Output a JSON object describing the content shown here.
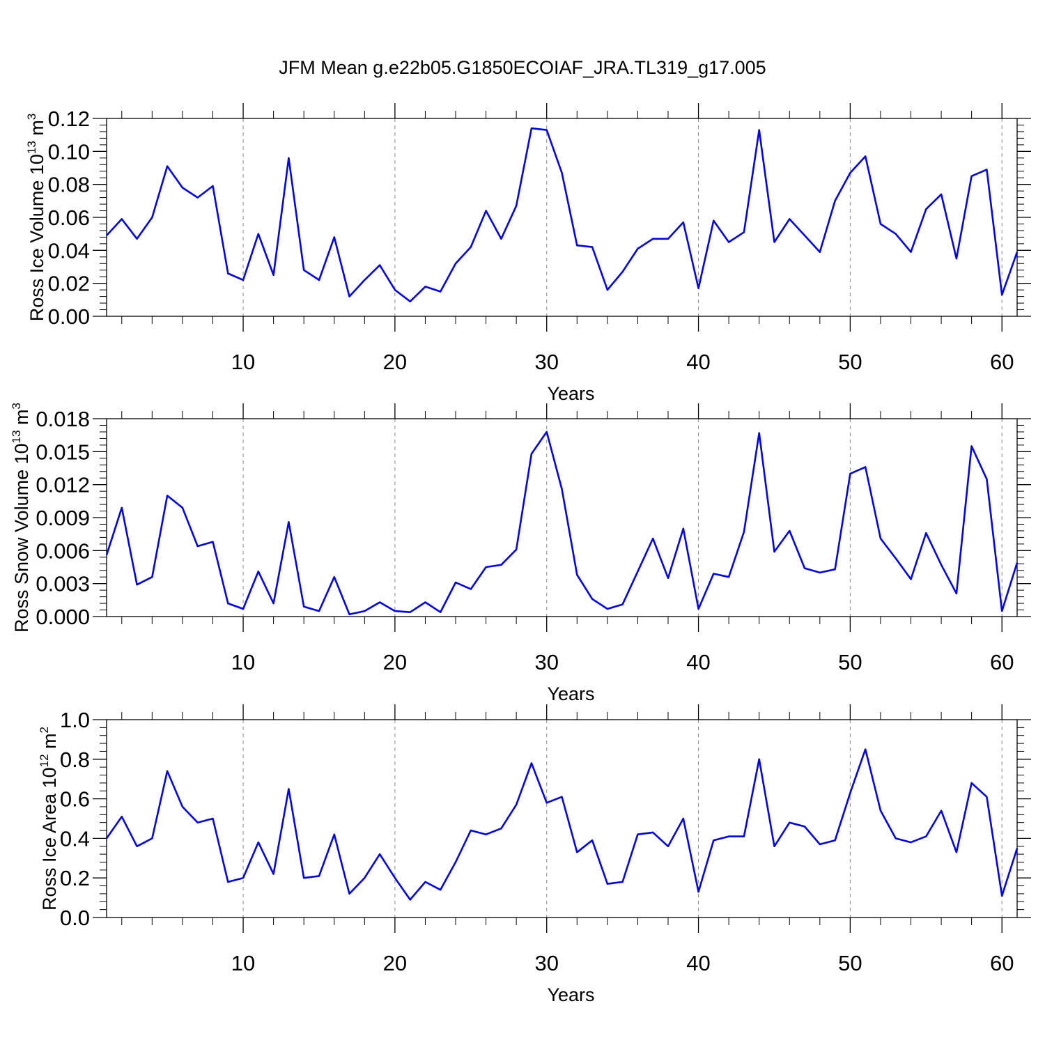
{
  "title": "JFM Mean g.e22b05.G1850ECOIAF_JRA.TL319_g17.005",
  "colors": {
    "line": "#0000ff",
    "axis": "#000000",
    "grid": "#888888"
  },
  "chart_data": [
    {
      "type": "line",
      "ylabel": {
        "main": "Ross Ice Volume 10",
        "sup": "13",
        "unit": " m",
        "unit_sup": "3"
      },
      "xlabel": "Years",
      "xlim": [
        1,
        61
      ],
      "ylim": [
        0,
        0.12
      ],
      "yticks": [
        0.0,
        0.02,
        0.04,
        0.06,
        0.08,
        0.1,
        0.12
      ],
      "ytick_labels": [
        "0.00",
        "0.02",
        "0.04",
        "0.06",
        "0.08",
        "0.10",
        "0.12"
      ],
      "xticks": [
        10,
        20,
        30,
        40,
        50,
        60
      ],
      "xtick_labels": [
        "10",
        "20",
        "30",
        "40",
        "50",
        "60"
      ],
      "grid": "vertical dashed at major x ticks",
      "series": [
        {
          "x": [
            1,
            2,
            3,
            4,
            5,
            6,
            7,
            8,
            9,
            10,
            11,
            12,
            13,
            14,
            15,
            16,
            17,
            18,
            19,
            20,
            21,
            22,
            23,
            24,
            25,
            26,
            27,
            28,
            29,
            30,
            31,
            32,
            33,
            34,
            35,
            36,
            37,
            38,
            39,
            40,
            41,
            42,
            43,
            44,
            45,
            46,
            47,
            48,
            49,
            50,
            51,
            52,
            53,
            54,
            55,
            56,
            57,
            58,
            59,
            60,
            61
          ],
          "values": [
            0.049,
            0.059,
            0.047,
            0.06,
            0.091,
            0.078,
            0.072,
            0.079,
            0.026,
            0.022,
            0.05,
            0.025,
            0.096,
            0.028,
            0.022,
            0.048,
            0.012,
            0.022,
            0.031,
            0.016,
            0.009,
            0.018,
            0.015,
            0.032,
            0.042,
            0.064,
            0.047,
            0.067,
            0.114,
            0.113,
            0.087,
            0.043,
            0.042,
            0.016,
            0.027,
            0.041,
            0.047,
            0.047,
            0.057,
            0.017,
            0.058,
            0.045,
            0.051,
            0.113,
            0.045,
            0.059,
            0.049,
            0.039,
            0.07,
            0.087,
            0.097,
            0.056,
            0.05,
            0.039,
            0.065,
            0.074,
            0.035,
            0.085,
            0.089,
            0.013,
            0.039
          ]
        }
      ]
    },
    {
      "type": "line",
      "ylabel": {
        "main": "Ross Snow Volume 10",
        "sup": "13",
        "unit": " m",
        "unit_sup": "3"
      },
      "xlabel": "Years",
      "xlim": [
        1,
        61
      ],
      "ylim": [
        0,
        0.018
      ],
      "yticks": [
        0.0,
        0.003,
        0.006,
        0.009,
        0.012,
        0.015,
        0.018
      ],
      "ytick_labels": [
        "0.000",
        "0.003",
        "0.006",
        "0.009",
        "0.012",
        "0.015",
        "0.018"
      ],
      "xticks": [
        10,
        20,
        30,
        40,
        50,
        60
      ],
      "xtick_labels": [
        "10",
        "20",
        "30",
        "40",
        "50",
        "60"
      ],
      "grid": "vertical dashed at major x ticks",
      "series": [
        {
          "x": [
            1,
            2,
            3,
            4,
            5,
            6,
            7,
            8,
            9,
            10,
            11,
            12,
            13,
            14,
            15,
            16,
            17,
            18,
            19,
            20,
            21,
            22,
            23,
            24,
            25,
            26,
            27,
            28,
            29,
            30,
            31,
            32,
            33,
            34,
            35,
            36,
            37,
            38,
            39,
            40,
            41,
            42,
            43,
            44,
            45,
            46,
            47,
            48,
            49,
            50,
            51,
            52,
            53,
            54,
            55,
            56,
            57,
            58,
            59,
            60,
            61
          ],
          "values": [
            0.0056,
            0.0099,
            0.0029,
            0.0036,
            0.011,
            0.0099,
            0.0064,
            0.0068,
            0.0012,
            0.0007,
            0.0041,
            0.0012,
            0.0086,
            0.0009,
            0.0005,
            0.0036,
            0.0002,
            0.0005,
            0.0013,
            0.0005,
            0.0004,
            0.0013,
            0.0004,
            0.0031,
            0.0025,
            0.0045,
            0.0047,
            0.0061,
            0.0148,
            0.0168,
            0.0116,
            0.0038,
            0.0016,
            0.0007,
            0.0011,
            0.0041,
            0.0071,
            0.0035,
            0.008,
            0.0007,
            0.0039,
            0.0036,
            0.0077,
            0.0167,
            0.0059,
            0.0078,
            0.0044,
            0.004,
            0.0043,
            0.013,
            0.0136,
            0.0071,
            0.0053,
            0.0034,
            0.0076,
            0.0047,
            0.0021,
            0.0155,
            0.0125,
            0.0005,
            0.0049
          ]
        }
      ]
    },
    {
      "type": "line",
      "ylabel": {
        "main": "Ross Ice Area 10",
        "sup": "12",
        "unit": " m",
        "unit_sup": "2"
      },
      "xlabel": "Years",
      "xlim": [
        1,
        61
      ],
      "ylim": [
        0,
        1.0
      ],
      "yticks": [
        0.0,
        0.2,
        0.4,
        0.6,
        0.8,
        1.0
      ],
      "ytick_labels": [
        "0.0",
        "0.2",
        "0.4",
        "0.6",
        "0.8",
        "1.0"
      ],
      "xticks": [
        10,
        20,
        30,
        40,
        50,
        60
      ],
      "xtick_labels": [
        "10",
        "20",
        "30",
        "40",
        "50",
        "60"
      ],
      "grid": "vertical dashed at major x ticks",
      "series": [
        {
          "x": [
            1,
            2,
            3,
            4,
            5,
            6,
            7,
            8,
            9,
            10,
            11,
            12,
            13,
            14,
            15,
            16,
            17,
            18,
            19,
            20,
            21,
            22,
            23,
            24,
            25,
            26,
            27,
            28,
            29,
            30,
            31,
            32,
            33,
            34,
            35,
            36,
            37,
            38,
            39,
            40,
            41,
            42,
            43,
            44,
            45,
            46,
            47,
            48,
            49,
            50,
            51,
            52,
            53,
            54,
            55,
            56,
            57,
            58,
            59,
            60,
            61
          ],
          "values": [
            0.4,
            0.51,
            0.36,
            0.4,
            0.74,
            0.56,
            0.48,
            0.5,
            0.18,
            0.2,
            0.38,
            0.22,
            0.65,
            0.2,
            0.21,
            0.42,
            0.12,
            0.2,
            0.32,
            0.2,
            0.09,
            0.18,
            0.14,
            0.28,
            0.44,
            0.42,
            0.45,
            0.57,
            0.78,
            0.58,
            0.61,
            0.33,
            0.39,
            0.17,
            0.18,
            0.42,
            0.43,
            0.36,
            0.5,
            0.13,
            0.39,
            0.41,
            0.41,
            0.8,
            0.36,
            0.48,
            0.46,
            0.37,
            0.39,
            0.63,
            0.85,
            0.54,
            0.4,
            0.38,
            0.41,
            0.54,
            0.33,
            0.68,
            0.61,
            0.11,
            0.35
          ]
        }
      ]
    }
  ]
}
